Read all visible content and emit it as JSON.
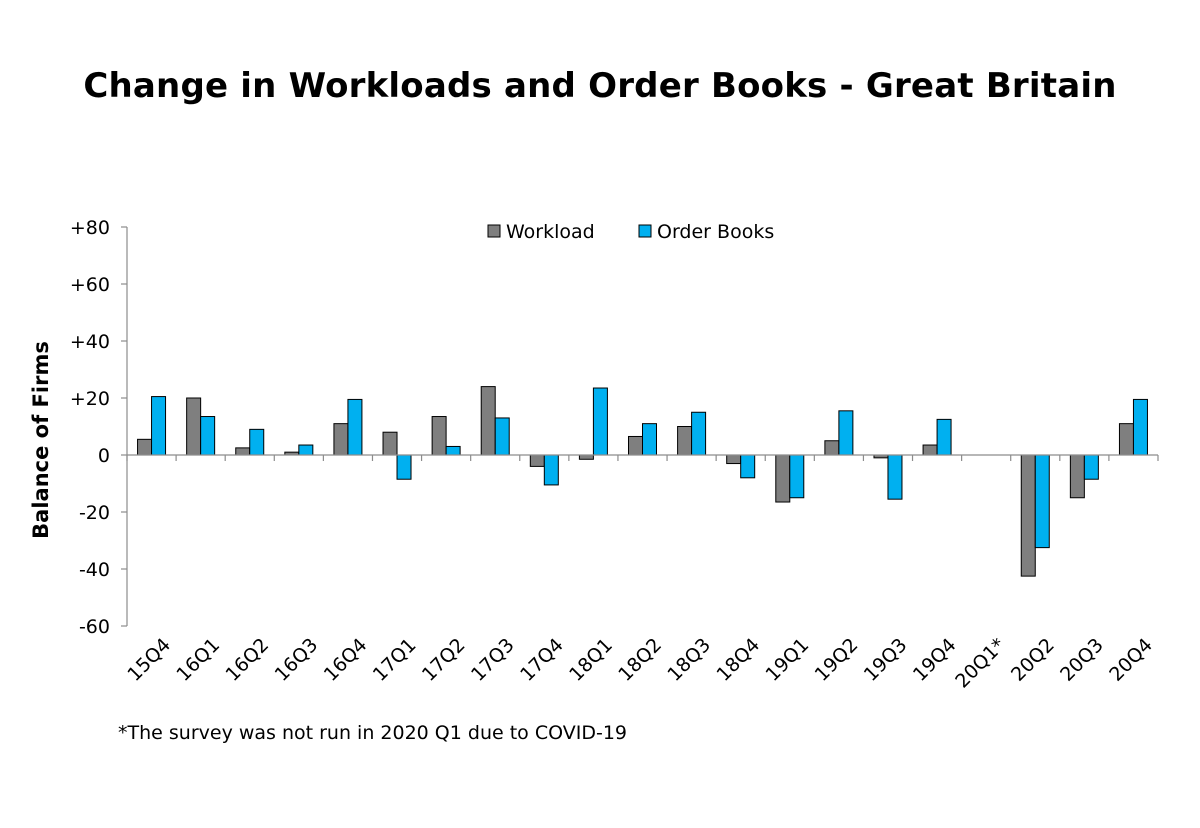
{
  "chart_data": {
    "type": "bar",
    "title": "Change in Workloads and Order Books - Great Britain",
    "xlabel": "",
    "ylabel": "Balance of Firms",
    "ylim": [
      -60,
      80
    ],
    "yticks": [
      "+80",
      "+60",
      "+40",
      "+20",
      "0",
      "-20",
      "-40",
      "-60"
    ],
    "ytick_values": [
      80,
      60,
      40,
      20,
      0,
      -20,
      -40,
      -60
    ],
    "categories": [
      "15Q4",
      "16Q1",
      "16Q2",
      "16Q3",
      "16Q4",
      "17Q1",
      "17Q2",
      "17Q3",
      "17Q4",
      "18Q1",
      "18Q2",
      "18Q3",
      "18Q4",
      "19Q1",
      "19Q2",
      "19Q3",
      "19Q4",
      "20Q1*",
      "20Q2",
      "20Q3",
      "20Q4"
    ],
    "series": [
      {
        "name": "Workload",
        "color": "#7f7f7f",
        "values": [
          5.5,
          20,
          2.5,
          1,
          11,
          8,
          13.5,
          24,
          -4,
          -1.5,
          6.5,
          10,
          -3,
          -16.5,
          5,
          -1,
          3.5,
          null,
          -42.5,
          -15,
          11
        ]
      },
      {
        "name": "Order Books",
        "color": "#00b0f0",
        "values": [
          20.5,
          13.5,
          9,
          3.5,
          19.5,
          -8.5,
          3,
          13,
          -10.5,
          23.5,
          11,
          15,
          -8,
          -15,
          15.5,
          -15.5,
          12.5,
          null,
          -32.5,
          -8.5,
          19.5
        ]
      }
    ],
    "grid": false,
    "legend_position": "top-center",
    "footnote": "*The survey was not run in 2020 Q1 due to COVID-19"
  }
}
